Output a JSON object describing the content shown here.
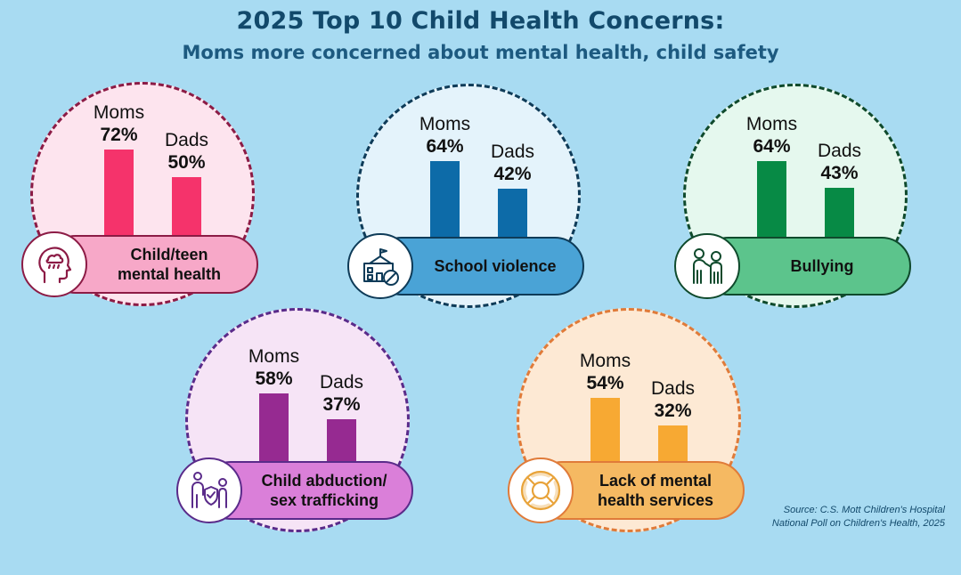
{
  "header": {
    "title": "2025 Top 10 Child Health Concerns:",
    "subtitle": "Moms more concerned about mental health, child safety"
  },
  "chart_data": [
    {
      "type": "bar",
      "title": "Child/teen mental health",
      "categories": [
        "Moms",
        "Dads"
      ],
      "values": [
        72,
        50
      ],
      "labels": [
        "72%",
        "50%"
      ],
      "ylim": [
        0,
        100
      ],
      "icon": "head-rain-cloud-icon",
      "colors": {
        "bar": "#f5336b",
        "circle_fill": "#fde4ee",
        "circle_stroke": "#8c1b45",
        "pill": "#f7a8c8"
      }
    },
    {
      "type": "bar",
      "title": "School violence",
      "categories": [
        "Moms",
        "Dads"
      ],
      "values": [
        64,
        42
      ],
      "labels": [
        "64%",
        "42%"
      ],
      "ylim": [
        0,
        100
      ],
      "icon": "school-prohibited-icon",
      "colors": {
        "bar": "#0d6ba8",
        "circle_fill": "#e4f3fb",
        "circle_stroke": "#0e3b58",
        "pill": "#4aa3d6"
      }
    },
    {
      "type": "bar",
      "title": "Bullying",
      "categories": [
        "Moms",
        "Dads"
      ],
      "values": [
        64,
        43
      ],
      "labels": [
        "64%",
        "43%"
      ],
      "ylim": [
        0,
        100
      ],
      "icon": "bullying-people-icon",
      "colors": {
        "bar": "#078a45",
        "circle_fill": "#e5f8ee",
        "circle_stroke": "#0f4a2c",
        "pill": "#5cc48c"
      }
    },
    {
      "type": "bar",
      "title": "Child abduction/ sex trafficking",
      "categories": [
        "Moms",
        "Dads"
      ],
      "values": [
        58,
        37
      ],
      "labels": [
        "58%",
        "37%"
      ],
      "ylim": [
        0,
        100
      ],
      "icon": "adult-child-shield-icon",
      "colors": {
        "bar": "#962a91",
        "circle_fill": "#f6e4f6",
        "circle_stroke": "#5a2b8a",
        "pill": "#da7fd9"
      }
    },
    {
      "type": "bar",
      "title": "Lack of mental health services",
      "categories": [
        "Moms",
        "Dads"
      ],
      "values": [
        54,
        32
      ],
      "labels": [
        "54%",
        "32%"
      ],
      "ylim": [
        0,
        100
      ],
      "icon": "lifebuoy-icon",
      "colors": {
        "bar": "#f7a933",
        "circle_fill": "#fde9d4",
        "circle_stroke": "#e07b39",
        "pill": "#f5b962"
      }
    }
  ],
  "source": {
    "line1": "Source: C.S. Mott Children's Hospital",
    "line2": "National Poll on Children's Health, 2025"
  }
}
